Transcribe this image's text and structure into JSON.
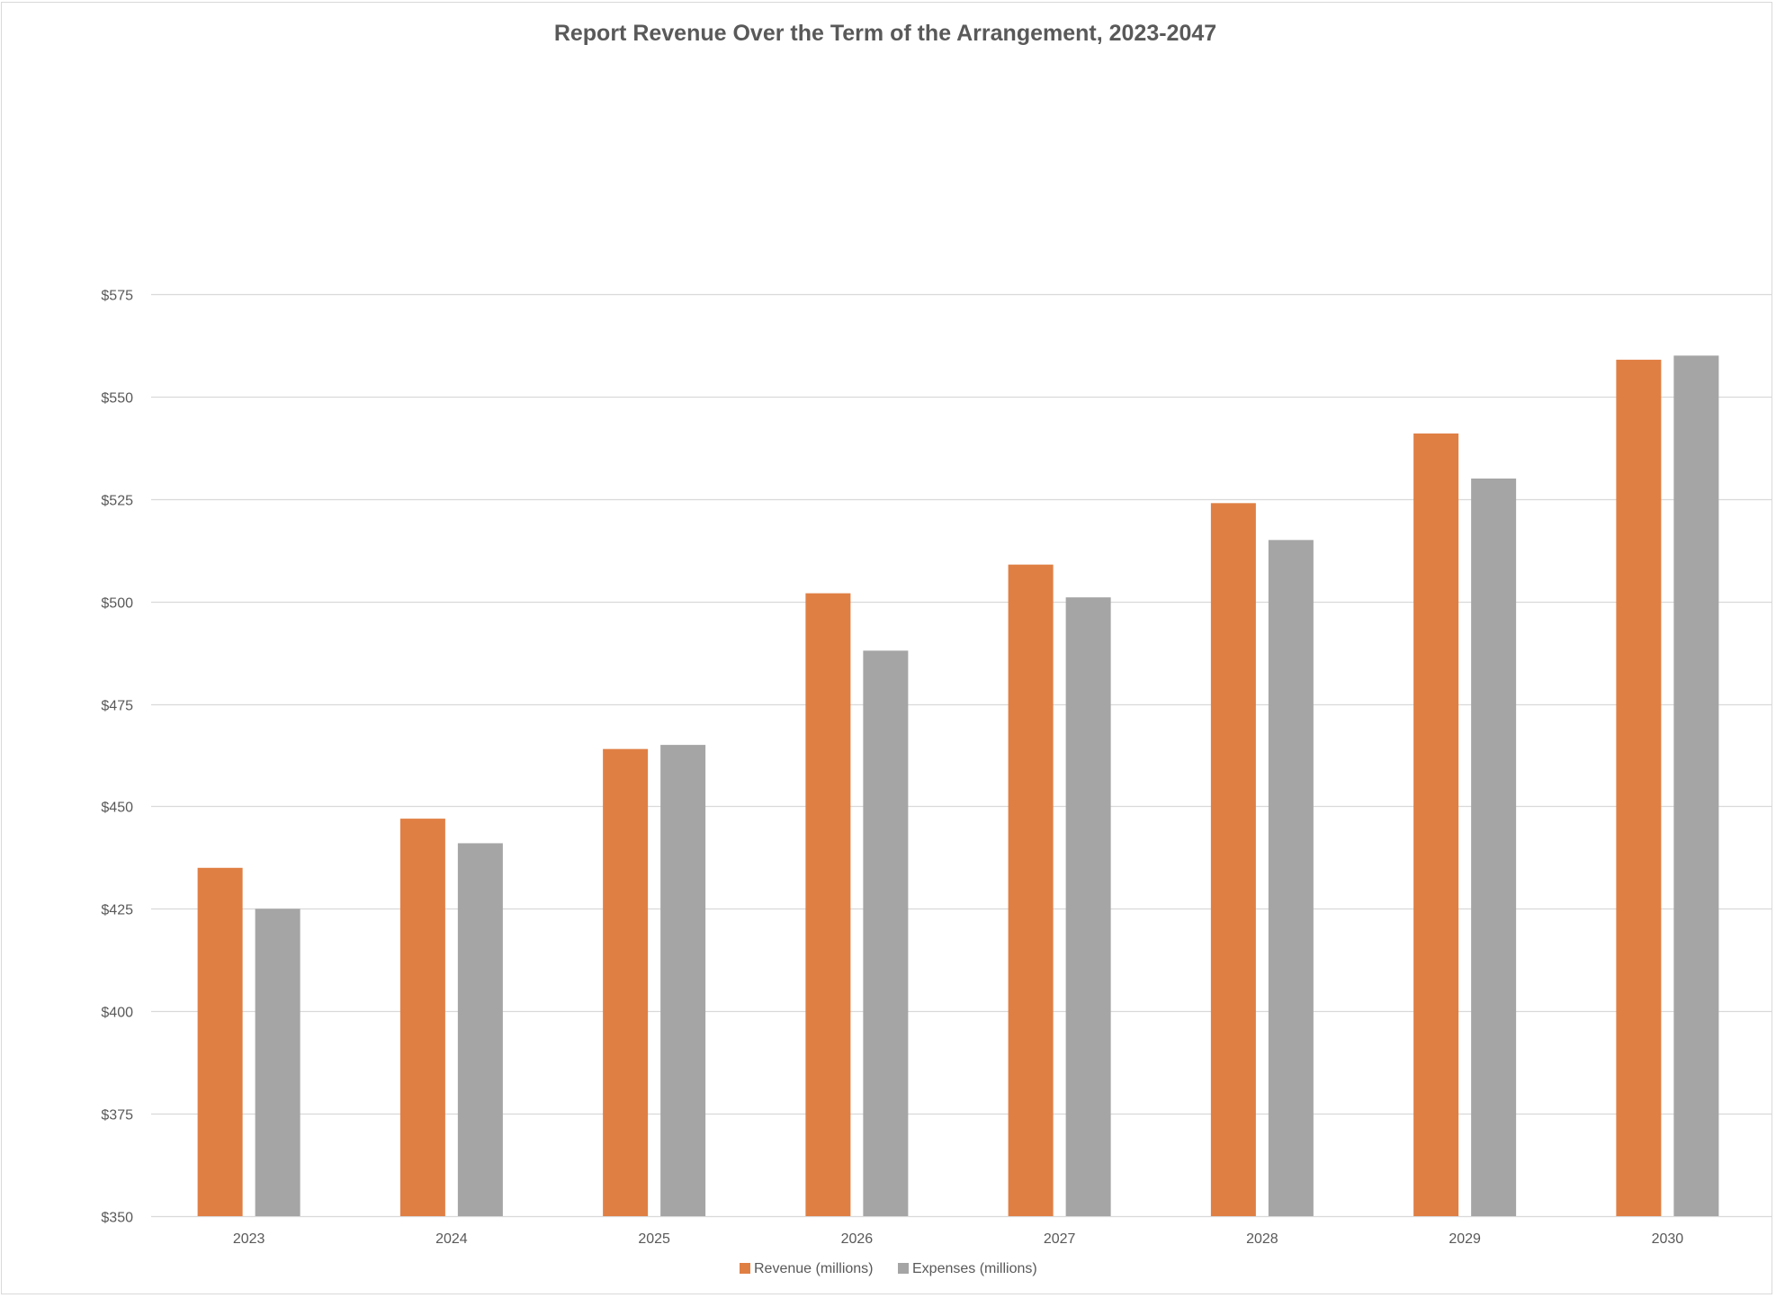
{
  "chart_data": {
    "type": "bar",
    "title": "Report Revenue Over the Term of the Arrangement, 2023-2047",
    "xlabel": "",
    "ylabel": "",
    "categories": [
      "2023",
      "2024",
      "2025",
      "2026",
      "2027",
      "2028",
      "2029",
      "2030"
    ],
    "series": [
      {
        "name": "Revenue (millions)",
        "color": "#E07F44",
        "values": [
          435,
          447,
          464,
          502,
          509,
          524,
          541,
          559
        ]
      },
      {
        "name": "Expenses (millions)",
        "color": "#A5A5A5",
        "values": [
          425,
          441,
          465,
          488,
          501,
          515,
          530,
          560
        ]
      }
    ],
    "ylim": [
      350,
      575
    ],
    "yticks": [
      350,
      375,
      400,
      425,
      450,
      475,
      500,
      525,
      550,
      575
    ],
    "ytick_labels": [
      "$350",
      "$375",
      "$400",
      "$425",
      "$450",
      "$475",
      "$500",
      "$525",
      "$550",
      "$575"
    ],
    "grid": true,
    "legend_position": "bottom",
    "gridline_color": "#D9D9D9"
  }
}
